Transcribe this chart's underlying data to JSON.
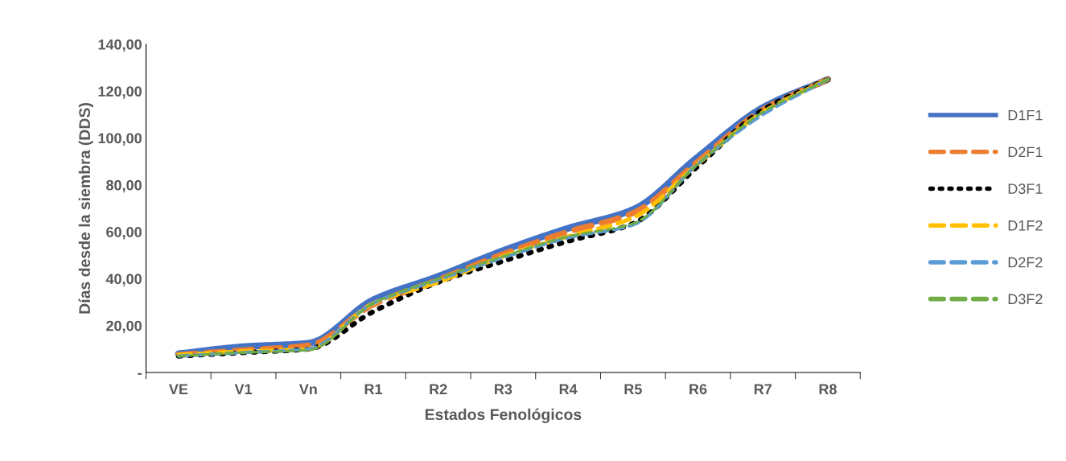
{
  "chart_data": {
    "type": "line",
    "xlabel": "Estados Fenológicos",
    "ylabel": "Días desde la siembra (DDS)",
    "categories": [
      "VE",
      "V1",
      "Vn",
      "R1",
      "R2",
      "R3",
      "R4",
      "R5",
      "R6",
      "R7",
      "R8"
    ],
    "series": [
      {
        "name": "D1F1",
        "color": "#4472c4",
        "line_style": "solid",
        "values": [
          8,
          11,
          12.5,
          31,
          41,
          52,
          61.5,
          69.5,
          92,
          113,
          125
        ]
      },
      {
        "name": "D2F1",
        "color": "#ed7d31",
        "line_style": "dashed",
        "values": [
          7.5,
          9.5,
          11.5,
          29,
          39.5,
          50.5,
          60,
          68,
          90,
          112,
          125
        ]
      },
      {
        "name": "D3F1",
        "color": "#000000",
        "line_style": "dotted",
        "values": [
          7,
          8.5,
          10,
          26,
          38.5,
          47.5,
          56,
          63.5,
          88,
          112,
          125
        ]
      },
      {
        "name": "D1F2",
        "color": "#ffc000",
        "line_style": "dashed",
        "values": [
          7.5,
          9,
          10,
          29.5,
          38.5,
          49.5,
          58,
          66,
          89,
          111,
          125
        ]
      },
      {
        "name": "D2F2",
        "color": "#5b9bd5",
        "line_style": "dashed",
        "values": [
          7,
          8.5,
          10,
          29.5,
          39.5,
          49,
          57.5,
          63,
          89,
          110,
          125
        ]
      },
      {
        "name": "D3F2",
        "color": "#70ad47",
        "line_style": "dashed",
        "values": [
          7,
          8.5,
          9.5,
          29.5,
          40,
          49.5,
          58,
          63.5,
          89,
          111,
          125
        ]
      }
    ],
    "ylim": [
      0,
      140
    ],
    "yticks": [
      {
        "value": 0,
        "label": "-"
      },
      {
        "value": 20,
        "label": "20,00"
      },
      {
        "value": 40,
        "label": "40,00"
      },
      {
        "value": 60,
        "label": "60,00"
      },
      {
        "value": 80,
        "label": "80,00"
      },
      {
        "value": 100,
        "label": "100,00"
      },
      {
        "value": 120,
        "label": "120,00"
      },
      {
        "value": 140,
        "label": "140,00"
      }
    ],
    "grid": false,
    "legend": "right",
    "marker": "none"
  }
}
